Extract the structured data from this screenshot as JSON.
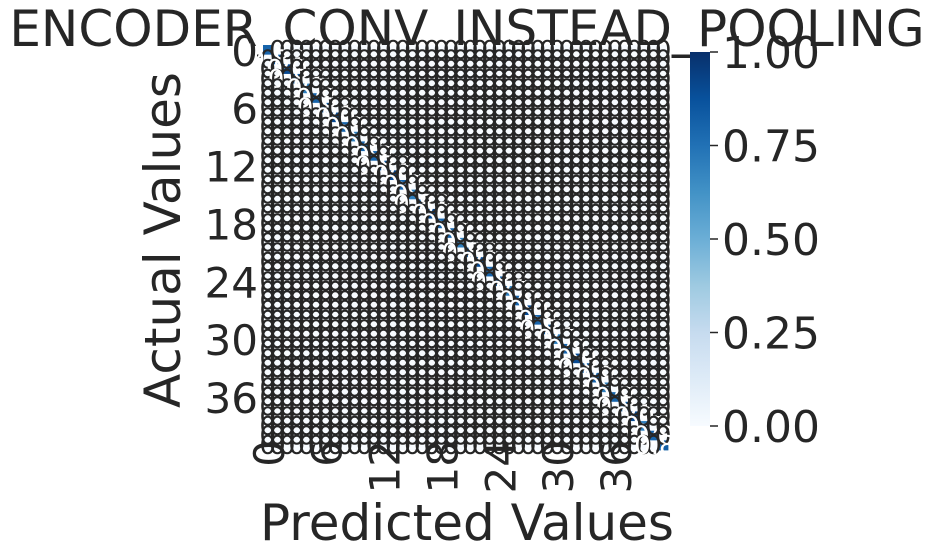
{
  "chart_data": {
    "type": "heatmap",
    "title": "ENCODER_CONV_INSTEAD_POOLING",
    "xlabel": "Predicted Values",
    "ylabel": "Actual Values",
    "n_classes": 42,
    "x_ticks": [
      "0",
      "6",
      "12",
      "18",
      "24",
      "30",
      "36"
    ],
    "y_ticks": [
      "0",
      "6",
      "12",
      "18",
      "24",
      "30",
      "36"
    ],
    "diagonal_values": [
      0.8,
      0.83,
      0.9,
      0.83,
      0.7,
      0.8,
      0.83,
      0.9,
      0.8,
      0.7,
      0.8,
      0.8,
      0.83,
      0.9,
      0.8,
      0.7,
      0.83,
      0.9,
      0.8,
      0.8,
      0.7,
      0.83,
      0.9,
      0.8,
      0.83,
      0.7,
      0.8,
      0.9,
      0.8,
      0.83,
      0.7,
      0.8,
      0.9,
      0.83,
      0.8,
      0.7,
      0.8,
      0.83,
      0.9,
      0.7,
      0.8,
      0.83
    ],
    "colorbar": {
      "ticks": [
        "0.00",
        "0.25",
        "0.50",
        "0.75",
        "1.00"
      ],
      "vmin": 0,
      "vmax": 1,
      "colormap": "Blues"
    },
    "annotation_color": "#262626",
    "grid": false,
    "legend": "colorbar-right"
  }
}
